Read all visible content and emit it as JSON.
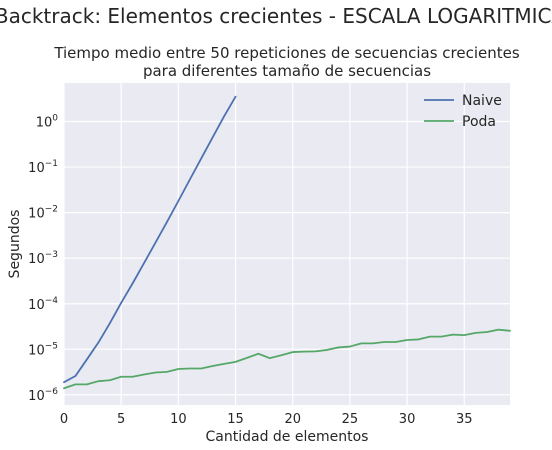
{
  "chart_data": {
    "type": "line",
    "suptitle": "Backtrack: Elementos crecientes - ESCALA LOGARITMICA",
    "title_lines": [
      "Tiempo medio entre 50 repeticiones de secuencias crecientes",
      "para diferentes tamaño de secuencias"
    ],
    "xlabel": "Cantidad de elementos",
    "ylabel": "Segundos",
    "xlim": [
      0,
      39
    ],
    "ylim": [
      6e-07,
      7
    ],
    "yscale": "log",
    "grid": true,
    "legend_position": "top-right",
    "x_ticks": [
      0,
      5,
      10,
      15,
      20,
      25,
      30,
      35
    ],
    "y_ticks": [
      {
        "base": "10",
        "exp": "0",
        "value": 1
      },
      {
        "base": "10",
        "exp": "−1",
        "value": 0.1
      },
      {
        "base": "10",
        "exp": "−2",
        "value": 0.01
      },
      {
        "base": "10",
        "exp": "−3",
        "value": 0.001
      },
      {
        "base": "10",
        "exp": "−4",
        "value": 0.0001
      },
      {
        "base": "10",
        "exp": "−5",
        "value": 1e-05
      },
      {
        "base": "10",
        "exp": "−6",
        "value": 1e-06
      }
    ],
    "series": [
      {
        "name": "Naive",
        "color": "#4c72b0",
        "x": [
          0,
          1,
          2,
          3,
          4,
          5,
          6,
          7,
          8,
          9,
          10,
          11,
          12,
          13,
          14,
          15
        ],
        "values": [
          1.9e-06,
          2.6e-06,
          6e-06,
          1.4e-05,
          3.7e-05,
          0.000105,
          0.00028,
          0.00078,
          0.0022,
          0.0062,
          0.018,
          0.053,
          0.155,
          0.45,
          1.3,
          3.5
        ]
      },
      {
        "name": "Poda",
        "color": "#55a868",
        "x": [
          0,
          1,
          2,
          3,
          4,
          5,
          6,
          7,
          8,
          9,
          10,
          11,
          12,
          13,
          14,
          15,
          16,
          17,
          18,
          19,
          20,
          21,
          22,
          23,
          24,
          25,
          26,
          27,
          28,
          29,
          30,
          31,
          32,
          33,
          34,
          35,
          36,
          37,
          38,
          39
        ],
        "values": [
          1.4e-06,
          1.7e-06,
          1.7e-06,
          2e-06,
          2.1e-06,
          2.5e-06,
          2.5e-06,
          2.8e-06,
          3.1e-06,
          3.2e-06,
          3.7e-06,
          3.8e-06,
          3.8e-06,
          4.3e-06,
          4.8e-06,
          5.3e-06,
          6.5e-06,
          8e-06,
          6.4e-06,
          7.4e-06,
          8.7e-06,
          8.9e-06,
          9e-06,
          9.7e-06,
          1.1e-05,
          1.15e-05,
          1.35e-05,
          1.35e-05,
          1.45e-05,
          1.45e-05,
          1.6e-05,
          1.65e-05,
          1.9e-05,
          1.9e-05,
          2.1e-05,
          2.05e-05,
          2.3e-05,
          2.4e-05,
          2.7e-05,
          2.55e-05
        ]
      }
    ]
  }
}
